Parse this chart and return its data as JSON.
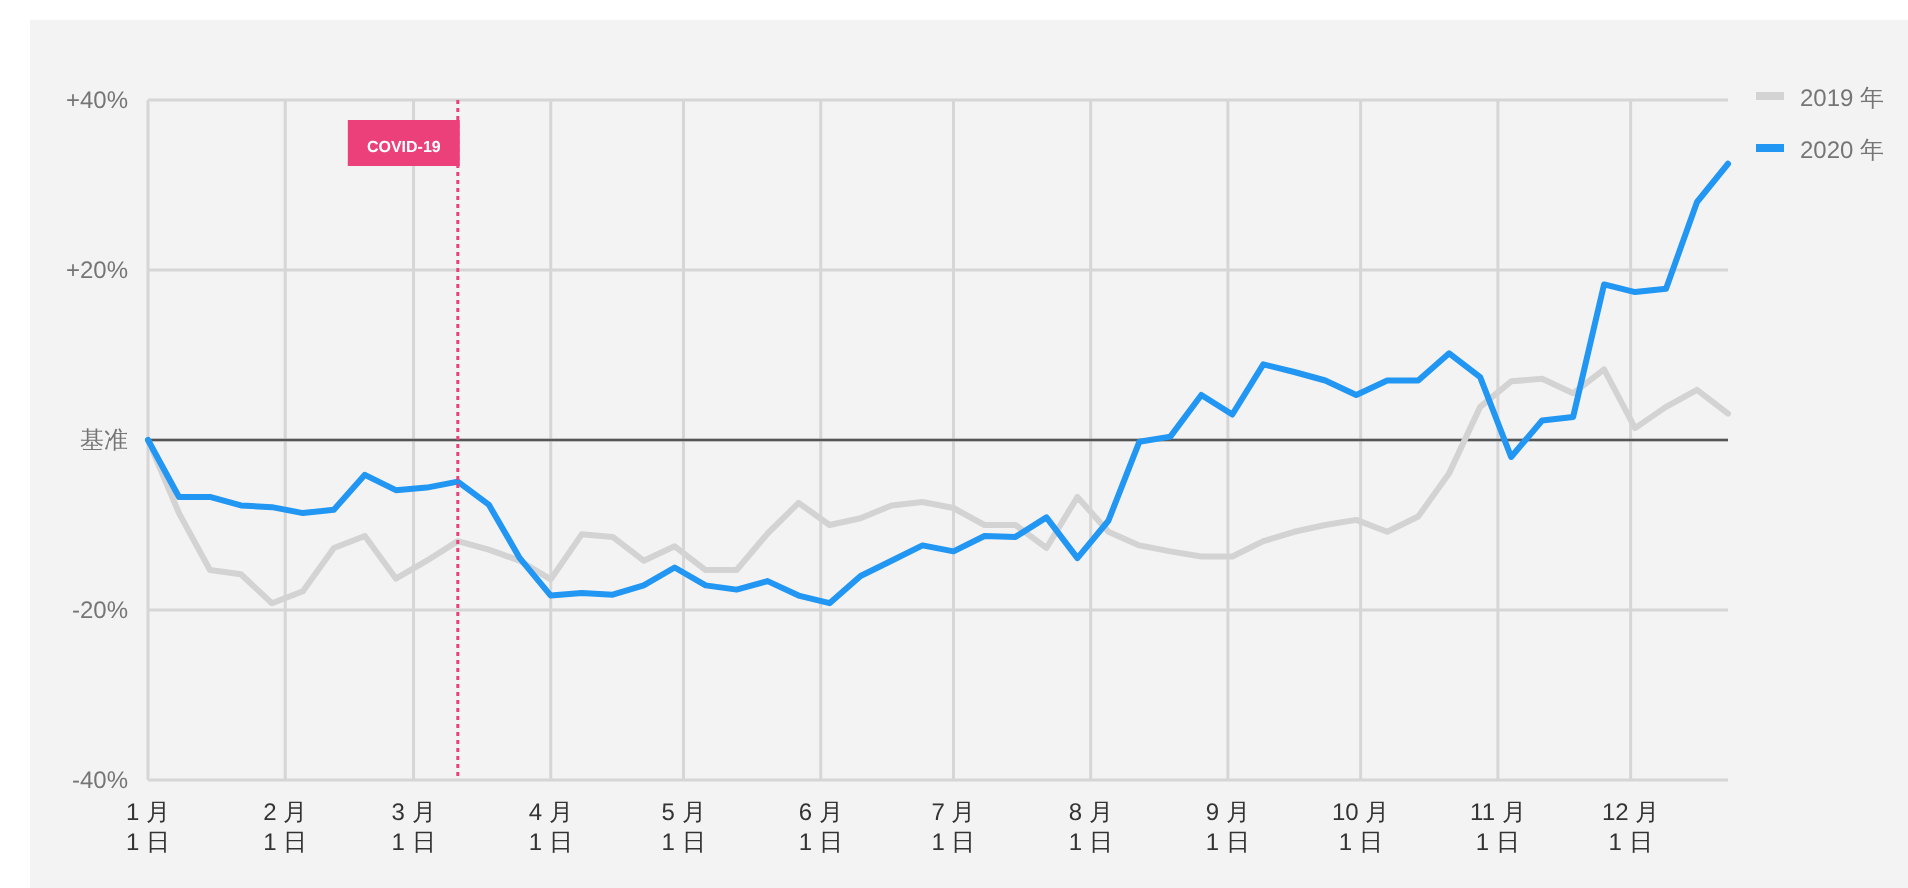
{
  "chart_data": {
    "type": "line",
    "x": [
      "--01-01",
      "--01-08",
      "--01-15",
      "--01-22",
      "--01-29",
      "--02-05",
      "--02-12",
      "--02-19",
      "--02-26",
      "--03-04",
      "--03-11",
      "--03-18",
      "--03-25",
      "--04-01",
      "--04-08",
      "--04-15",
      "--04-22",
      "--04-29",
      "--05-06",
      "--05-13",
      "--05-20",
      "--05-27",
      "--06-03",
      "--06-10",
      "--06-17",
      "--06-24",
      "--07-01",
      "--07-08",
      "--07-15",
      "--07-22",
      "--07-29",
      "--08-05",
      "--08-12",
      "--08-19",
      "--08-26",
      "--09-02",
      "--09-09",
      "--09-16",
      "--09-23",
      "--09-30",
      "--10-07",
      "--10-14",
      "--10-21",
      "--10-28",
      "--11-04",
      "--11-11",
      "--11-18",
      "--11-25",
      "--12-02",
      "--12-09",
      "--12-16",
      "--12-23"
    ],
    "series": [
      {
        "name": "2019 年",
        "color": "#d3d3d3",
        "values": [
          0,
          -8.6,
          -15.3,
          -15.8,
          -19.2,
          -17.8,
          -12.7,
          -11.3,
          -16.3,
          -14.2,
          -11.9,
          -12.9,
          -14.2,
          -16.4,
          -11.1,
          -11.4,
          -14.2,
          -12.5,
          -15.3,
          -15.3,
          -11.0,
          -7.4,
          -10.0,
          -9.2,
          -7.7,
          -7.3,
          -8.0,
          -10.0,
          -10.0,
          -12.7,
          -6.7,
          -10.8,
          -12.4,
          -13.1,
          -13.7,
          -13.7,
          -11.9,
          -10.8,
          -10.0,
          -9.4,
          -10.8,
          -9.0,
          -3.9,
          3.9,
          6.9,
          7.2,
          5.5,
          8.3,
          1.4,
          3.9,
          5.9,
          3.1
        ]
      },
      {
        "name": "2020 年",
        "color": "#2196f3",
        "values": [
          0,
          -6.7,
          -6.7,
          -7.7,
          -7.9,
          -8.6,
          -8.2,
          -4.1,
          -5.9,
          -5.6,
          -4.9,
          -7.6,
          -13.9,
          -18.3,
          -18.0,
          -18.2,
          -17.1,
          -15.0,
          -17.1,
          -17.6,
          -16.6,
          -18.3,
          -19.2,
          -16.0,
          -14.2,
          -12.4,
          -13.1,
          -11.3,
          -11.4,
          -9.1,
          -13.9,
          -9.5,
          -0.2,
          0.4,
          5.3,
          3.0,
          8.9,
          8.0,
          7.0,
          5.3,
          7.0,
          7.0,
          10.2,
          7.4,
          -2.0,
          2.3,
          2.7,
          18.3,
          17.4,
          17.8,
          28.0,
          32.5
        ]
      }
    ],
    "xlim": [
      "--01-01",
      "--12-23"
    ],
    "xticks": [
      {
        "value": "--01-01",
        "label": "1 月\n1 日"
      },
      {
        "value": "--02-01",
        "label": "2 月\n1 日"
      },
      {
        "value": "--03-01",
        "label": "3 月\n1 日"
      },
      {
        "value": "--04-01",
        "label": "4 月\n1 日"
      },
      {
        "value": "--05-01",
        "label": "5 月\n1 日"
      },
      {
        "value": "--06-01",
        "label": "6 月\n1 日"
      },
      {
        "value": "--07-01",
        "label": "7 月\n1 日"
      },
      {
        "value": "--08-01",
        "label": "8 月\n1 日"
      },
      {
        "value": "--09-01",
        "label": "9 月\n1 日"
      },
      {
        "value": "--10-01",
        "label": "10 月\n1 日"
      },
      {
        "value": "--11-01",
        "label": "11 月\n1 日"
      },
      {
        "value": "--12-01",
        "label": "12 月\n1 日"
      }
    ],
    "ylim": [
      -40,
      40
    ],
    "yticks": [
      {
        "value": -40,
        "label": "-40%"
      },
      {
        "value": -20,
        "label": "-20%"
      },
      {
        "value": 0,
        "label": "基准"
      },
      {
        "value": 20,
        "label": "+20%"
      },
      {
        "value": 40,
        "label": "+40%"
      }
    ],
    "ref_lines": [
      {
        "axis": "y",
        "value": 0,
        "color": "#555555",
        "line_style": "solid"
      },
      {
        "axis": "x",
        "value": "--03-11",
        "label": "COVID-19",
        "color": "#ec407a",
        "line_style": "dotted"
      }
    ],
    "grid": true,
    "legend": "top right",
    "marker": "none",
    "line_style": "solid"
  }
}
